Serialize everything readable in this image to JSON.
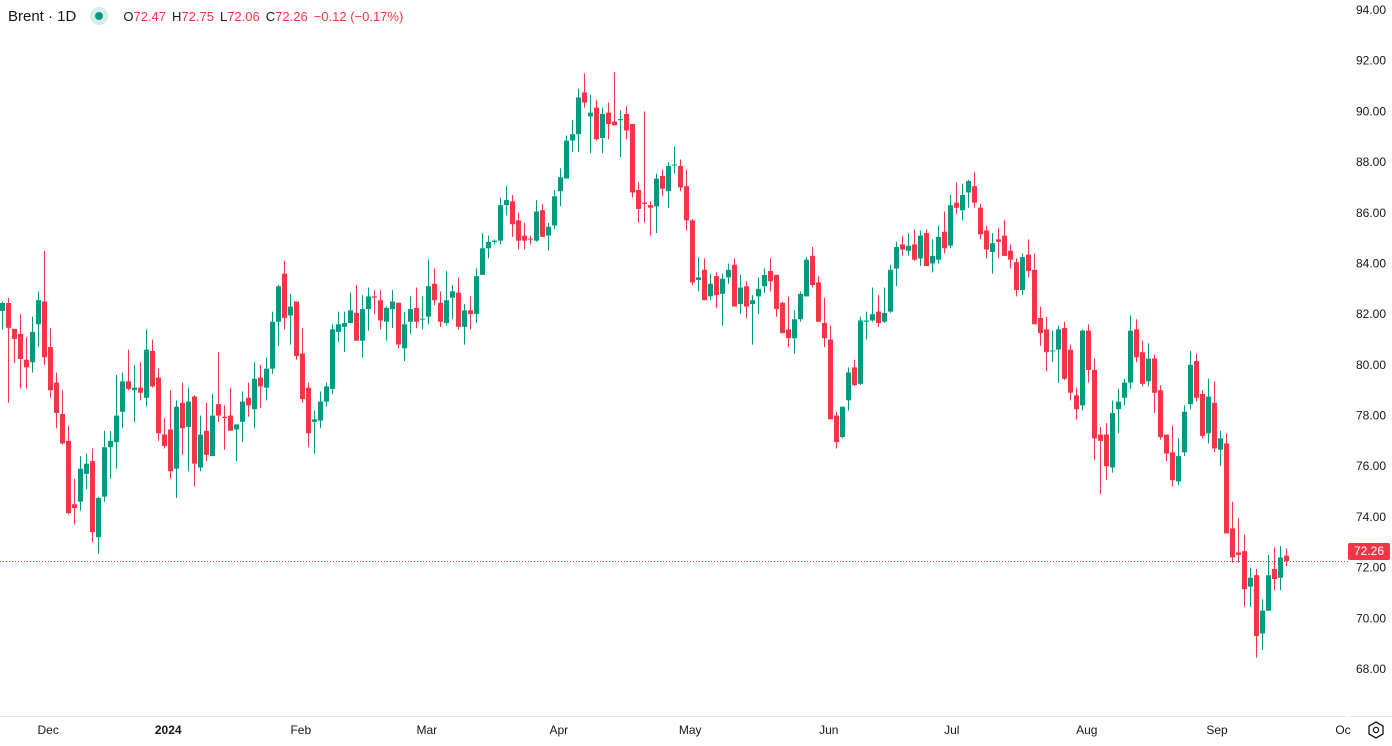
{
  "header": {
    "symbol": "Brent · 1D",
    "open_label": "O",
    "open": "72.47",
    "high_label": "H",
    "high": "72.75",
    "low_label": "L",
    "low": "72.06",
    "close_label": "C",
    "close": "72.26",
    "change": "−0.12 (−0.17%)",
    "status_color": "#089981"
  },
  "last_price_label": "72.26",
  "colors": {
    "up": "#089981",
    "down": "#f23645",
    "axis_text": "#131722",
    "last_price": "#f23645"
  },
  "settings_icon": "gear-icon",
  "chart_data": {
    "type": "candlestick",
    "title": "",
    "ylim": [
      68,
      94
    ],
    "y_ticks": [
      "68.00",
      "70.00",
      "72.00",
      "74.00",
      "76.00",
      "78.00",
      "80.00",
      "82.00",
      "84.00",
      "86.00",
      "88.00",
      "90.00",
      "92.00",
      "94.00"
    ],
    "x_ticks": [
      {
        "label": "Dec",
        "index": 7.7
      },
      {
        "label": "2024",
        "index": 27.7
      },
      {
        "label": "Feb",
        "index": 49.8
      },
      {
        "label": "Mar",
        "index": 70.8
      },
      {
        "label": "Apr",
        "index": 92.8
      },
      {
        "label": "May",
        "index": 114.7
      },
      {
        "label": "Jun",
        "index": 137.8
      },
      {
        "label": "Jul",
        "index": 158.3
      },
      {
        "label": "Aug",
        "index": 180.8
      },
      {
        "label": "Sep",
        "index": 202.5
      },
      {
        "label": "Oc",
        "index": 223.5
      }
    ],
    "last_price": 72.26,
    "grid": false,
    "ohlc_fields": [
      "open",
      "high",
      "low",
      "close"
    ],
    "candles": [
      [
        82.13,
        82.5,
        81.4,
        82.44
      ],
      [
        82.44,
        82.64,
        78.5,
        81.46
      ],
      [
        81.42,
        81.42,
        80.07,
        81.02
      ],
      [
        81.22,
        82.0,
        79.06,
        80.23
      ],
      [
        80.2,
        81.1,
        79.06,
        79.9
      ],
      [
        80.1,
        81.9,
        79.7,
        81.3
      ],
      [
        81.6,
        82.9,
        80.7,
        82.55
      ],
      [
        82.5,
        84.5,
        80.0,
        80.3
      ],
      [
        80.7,
        81.45,
        78.7,
        79.0
      ],
      [
        79.3,
        79.7,
        77.5,
        78.1
      ],
      [
        78.06,
        79.0,
        76.85,
        76.9
      ],
      [
        77.0,
        77.6,
        74.1,
        74.15
      ],
      [
        74.5,
        75.5,
        73.7,
        74.35
      ],
      [
        74.6,
        76.4,
        74.25,
        75.9
      ],
      [
        75.7,
        76.5,
        75.1,
        76.1
      ],
      [
        76.2,
        76.7,
        73.0,
        73.4
      ],
      [
        73.2,
        74.8,
        72.55,
        74.75
      ],
      [
        74.8,
        77.4,
        74.6,
        76.75
      ],
      [
        76.75,
        77.4,
        75.5,
        77.0
      ],
      [
        76.95,
        79.6,
        75.9,
        78.0
      ],
      [
        78.15,
        79.7,
        77.5,
        79.35
      ],
      [
        79.35,
        80.6,
        79.0,
        79.05
      ],
      [
        79.0,
        80.0,
        77.75,
        79.1
      ],
      [
        79.1,
        80.1,
        78.6,
        78.9
      ],
      [
        78.7,
        81.4,
        78.35,
        80.6
      ],
      [
        80.55,
        81.0,
        79.1,
        79.15
      ],
      [
        79.5,
        79.85,
        77.0,
        77.3
      ],
      [
        77.25,
        77.9,
        76.7,
        76.8
      ],
      [
        77.45,
        79.0,
        75.5,
        75.8
      ],
      [
        75.9,
        78.6,
        74.75,
        78.35
      ],
      [
        78.5,
        79.3,
        76.45,
        77.5
      ],
      [
        77.55,
        79.1,
        75.8,
        78.55
      ],
      [
        78.75,
        78.8,
        75.2,
        76.1
      ],
      [
        75.95,
        78.0,
        75.8,
        77.25
      ],
      [
        77.4,
        78.5,
        76.2,
        76.45
      ],
      [
        76.4,
        78.85,
        76.4,
        78.0
      ],
      [
        78.45,
        80.5,
        77.75,
        78.0
      ],
      [
        77.95,
        78.4,
        76.65,
        77.9
      ],
      [
        78.0,
        79.1,
        77.4,
        77.4
      ],
      [
        77.45,
        77.65,
        76.2,
        77.65
      ],
      [
        77.75,
        78.95,
        76.95,
        78.55
      ],
      [
        78.7,
        79.3,
        77.95,
        78.4
      ],
      [
        78.25,
        80.1,
        77.5,
        79.45
      ],
      [
        79.5,
        80.0,
        78.3,
        79.15
      ],
      [
        79.1,
        80.3,
        78.6,
        79.85
      ],
      [
        79.85,
        82.1,
        79.65,
        81.7
      ],
      [
        81.7,
        83.15,
        80.75,
        83.1
      ],
      [
        83.6,
        84.1,
        81.4,
        81.85
      ],
      [
        81.95,
        82.8,
        80.8,
        82.3
      ],
      [
        82.5,
        82.5,
        80.2,
        80.35
      ],
      [
        80.45,
        81.45,
        78.5,
        78.65
      ],
      [
        79.1,
        79.3,
        76.75,
        77.3
      ],
      [
        77.75,
        78.2,
        76.5,
        77.85
      ],
      [
        77.8,
        78.95,
        77.5,
        78.55
      ],
      [
        78.55,
        79.3,
        78.35,
        79.15
      ],
      [
        79.05,
        81.6,
        78.85,
        81.4
      ],
      [
        81.3,
        82.1,
        80.9,
        81.6
      ],
      [
        81.5,
        82.1,
        80.5,
        81.65
      ],
      [
        81.65,
        82.85,
        81.65,
        82.15
      ],
      [
        82.05,
        83.15,
        80.95,
        80.95
      ],
      [
        80.95,
        82.75,
        80.3,
        82.2
      ],
      [
        82.2,
        83.05,
        81.35,
        82.7
      ],
      [
        82.7,
        82.95,
        82.0,
        82.65
      ],
      [
        82.55,
        82.95,
        81.4,
        81.75
      ],
      [
        81.7,
        82.3,
        80.95,
        82.25
      ],
      [
        82.2,
        82.95,
        81.45,
        82.5
      ],
      [
        82.45,
        82.45,
        80.65,
        80.8
      ],
      [
        80.65,
        82.1,
        80.15,
        81.6
      ],
      [
        81.7,
        82.7,
        81.2,
        82.2
      ],
      [
        82.25,
        83.05,
        81.45,
        81.7
      ],
      [
        81.8,
        82.7,
        81.4,
        81.82
      ],
      [
        81.9,
        84.15,
        81.6,
        83.1
      ],
      [
        83.2,
        83.8,
        82.35,
        82.55
      ],
      [
        82.45,
        82.9,
        81.5,
        81.7
      ],
      [
        81.65,
        83.7,
        81.55,
        82.55
      ],
      [
        82.65,
        83.15,
        81.8,
        82.9
      ],
      [
        82.85,
        83.45,
        81.4,
        81.5
      ],
      [
        81.5,
        82.4,
        80.8,
        82.15
      ],
      [
        82.15,
        82.7,
        81.4,
        82.0
      ],
      [
        82.0,
        83.8,
        81.65,
        83.5
      ],
      [
        83.55,
        85.2,
        83.55,
        84.6
      ],
      [
        84.6,
        85.1,
        84.2,
        84.85
      ],
      [
        84.85,
        84.95,
        84.75,
        84.9
      ],
      [
        84.9,
        86.6,
        84.75,
        86.3
      ],
      [
        86.3,
        87.05,
        85.9,
        86.5
      ],
      [
        86.45,
        86.7,
        85.05,
        85.55
      ],
      [
        85.7,
        86.0,
        84.55,
        84.9
      ],
      [
        85.1,
        85.6,
        84.55,
        84.9
      ],
      [
        84.98,
        85.1,
        84.75,
        84.95
      ],
      [
        84.9,
        86.5,
        84.85,
        86.05
      ],
      [
        86.1,
        86.35,
        85.05,
        85.05
      ],
      [
        85.1,
        85.6,
        84.5,
        85.45
      ],
      [
        85.5,
        86.9,
        85.35,
        86.65
      ],
      [
        86.85,
        87.75,
        86.25,
        87.4
      ],
      [
        87.35,
        89.05,
        87.35,
        88.85
      ],
      [
        88.85,
        89.65,
        88.4,
        89.1
      ],
      [
        89.1,
        90.9,
        88.4,
        90.55
      ],
      [
        90.75,
        91.5,
        90.15,
        90.35
      ],
      [
        89.8,
        90.65,
        88.35,
        89.95
      ],
      [
        90.15,
        90.45,
        88.85,
        88.9
      ],
      [
        88.95,
        90.15,
        88.35,
        89.9
      ],
      [
        89.95,
        90.35,
        88.9,
        89.5
      ],
      [
        89.6,
        91.55,
        89.45,
        89.45
      ],
      [
        89.65,
        90.05,
        88.2,
        89.7
      ],
      [
        89.9,
        90.2,
        88.9,
        89.25
      ],
      [
        89.5,
        89.5,
        86.6,
        86.8
      ],
      [
        86.9,
        87.2,
        85.6,
        86.15
      ],
      [
        86.4,
        90.0,
        85.6,
        86.35
      ],
      [
        86.3,
        86.45,
        85.1,
        86.2
      ],
      [
        86.25,
        87.55,
        85.2,
        87.35
      ],
      [
        87.45,
        87.7,
        86.65,
        86.95
      ],
      [
        86.85,
        88.0,
        86.2,
        87.85
      ],
      [
        87.88,
        88.6,
        87.55,
        87.9
      ],
      [
        87.85,
        88.1,
        86.85,
        87.0
      ],
      [
        87.05,
        87.7,
        85.3,
        85.7
      ],
      [
        85.7,
        85.75,
        83.15,
        83.25
      ],
      [
        83.35,
        84.25,
        82.9,
        83.45
      ],
      [
        83.75,
        84.2,
        82.55,
        82.55
      ],
      [
        82.7,
        83.6,
        82.55,
        83.2
      ],
      [
        83.5,
        83.65,
        82.25,
        82.75
      ],
      [
        82.8,
        83.6,
        81.55,
        83.4
      ],
      [
        83.45,
        84.0,
        83.2,
        83.75
      ],
      [
        83.95,
        84.2,
        82.3,
        82.3
      ],
      [
        82.4,
        83.55,
        82.0,
        83.05
      ],
      [
        83.1,
        83.3,
        81.85,
        82.3
      ],
      [
        82.4,
        82.75,
        80.8,
        82.55
      ],
      [
        82.7,
        83.45,
        82.0,
        83.0
      ],
      [
        83.1,
        83.8,
        82.85,
        83.55
      ],
      [
        83.7,
        84.2,
        82.9,
        83.3
      ],
      [
        83.55,
        83.55,
        81.9,
        82.2
      ],
      [
        82.45,
        82.5,
        81.25,
        81.25
      ],
      [
        81.4,
        82.7,
        80.7,
        81.05
      ],
      [
        81.05,
        82.15,
        80.45,
        81.8
      ],
      [
        81.8,
        82.9,
        81.7,
        82.8
      ],
      [
        82.7,
        84.25,
        82.7,
        84.15
      ],
      [
        84.3,
        84.65,
        83.05,
        83.15
      ],
      [
        83.25,
        83.5,
        81.7,
        81.7
      ],
      [
        81.65,
        82.65,
        80.7,
        81.05
      ],
      [
        81.0,
        81.55,
        77.85,
        77.85
      ],
      [
        78.0,
        78.15,
        76.7,
        76.95
      ],
      [
        77.15,
        78.35,
        77.1,
        78.35
      ],
      [
        78.6,
        79.9,
        78.2,
        79.7
      ],
      [
        79.9,
        80.2,
        79.15,
        79.2
      ],
      [
        79.25,
        81.9,
        79.2,
        81.75
      ],
      [
        81.7,
        82.1,
        81.0,
        81.75
      ],
      [
        81.75,
        83.05,
        81.7,
        82.0
      ],
      [
        82.1,
        82.75,
        81.5,
        81.65
      ],
      [
        81.7,
        83.05,
        81.65,
        82.05
      ],
      [
        82.1,
        83.95,
        82.05,
        83.75
      ],
      [
        83.8,
        84.85,
        83.1,
        84.65
      ],
      [
        84.75,
        85.1,
        84.3,
        84.55
      ],
      [
        84.5,
        85.2,
        84.3,
        84.7
      ],
      [
        84.75,
        85.35,
        84.1,
        84.15
      ],
      [
        84.2,
        85.3,
        83.9,
        85.1
      ],
      [
        85.2,
        85.35,
        83.9,
        83.9
      ],
      [
        84.0,
        84.95,
        83.65,
        84.3
      ],
      [
        84.15,
        85.5,
        84.0,
        85.05
      ],
      [
        85.25,
        86.05,
        84.4,
        84.6
      ],
      [
        84.7,
        86.7,
        84.6,
        86.3
      ],
      [
        86.4,
        87.2,
        85.95,
        86.2
      ],
      [
        86.1,
        87.15,
        85.7,
        86.7
      ],
      [
        86.8,
        87.3,
        86.2,
        87.25
      ],
      [
        87.05,
        87.6,
        86.2,
        86.4
      ],
      [
        86.2,
        86.35,
        84.95,
        85.15
      ],
      [
        85.3,
        85.5,
        84.2,
        84.55
      ],
      [
        84.45,
        85.2,
        83.6,
        84.8
      ],
      [
        84.95,
        85.4,
        84.2,
        84.85
      ],
      [
        85.1,
        85.7,
        84.3,
        84.3
      ],
      [
        84.5,
        84.75,
        83.8,
        84.15
      ],
      [
        84.05,
        84.2,
        82.7,
        82.95
      ],
      [
        82.95,
        84.4,
        82.75,
        84.25
      ],
      [
        84.35,
        84.95,
        83.45,
        83.7
      ],
      [
        83.75,
        84.4,
        81.6,
        81.6
      ],
      [
        81.85,
        82.3,
        80.75,
        81.25
      ],
      [
        81.4,
        81.9,
        79.75,
        80.5
      ],
      [
        80.55,
        81.35,
        80.1,
        80.57
      ],
      [
        80.6,
        81.55,
        79.3,
        81.4
      ],
      [
        81.45,
        81.7,
        79.4,
        79.45
      ],
      [
        80.6,
        80.8,
        78.6,
        78.9
      ],
      [
        78.8,
        79.1,
        77.85,
        78.25
      ],
      [
        78.4,
        81.4,
        78.2,
        81.35
      ],
      [
        81.35,
        81.6,
        79.3,
        79.8
      ],
      [
        79.8,
        80.25,
        76.25,
        77.1
      ],
      [
        77.25,
        77.55,
        74.9,
        77.0
      ],
      [
        77.25,
        77.7,
        75.45,
        76.0
      ],
      [
        75.95,
        78.6,
        75.75,
        78.1
      ],
      [
        78.25,
        79.05,
        77.3,
        78.55
      ],
      [
        78.7,
        79.45,
        78.4,
        79.3
      ],
      [
        79.3,
        81.95,
        79.05,
        81.35
      ],
      [
        81.4,
        81.8,
        80.1,
        80.3
      ],
      [
        80.5,
        80.95,
        79.15,
        79.25
      ],
      [
        79.35,
        80.85,
        79.15,
        80.25
      ],
      [
        80.25,
        80.4,
        78.1,
        78.9
      ],
      [
        79.0,
        79.2,
        77.05,
        77.15
      ],
      [
        77.25,
        77.25,
        76.2,
        76.5
      ],
      [
        76.55,
        77.6,
        75.2,
        75.45
      ],
      [
        75.4,
        77.1,
        75.25,
        76.4
      ],
      [
        76.55,
        78.4,
        76.4,
        78.15
      ],
      [
        78.45,
        80.55,
        78.25,
        80.0
      ],
      [
        80.15,
        80.45,
        78.55,
        78.7
      ],
      [
        78.85,
        79.0,
        77.1,
        77.2
      ],
      [
        77.3,
        79.45,
        76.9,
        78.75
      ],
      [
        78.5,
        79.35,
        76.55,
        76.7
      ],
      [
        76.65,
        77.4,
        76.0,
        77.1
      ],
      [
        76.9,
        77.3,
        73.35,
        73.35
      ],
      [
        73.55,
        74.6,
        72.2,
        72.4
      ],
      [
        72.6,
        73.95,
        72.2,
        72.5
      ],
      [
        72.65,
        73.3,
        70.45,
        71.15
      ],
      [
        71.25,
        72.0,
        70.45,
        71.6
      ],
      [
        71.7,
        71.95,
        68.45,
        69.3
      ],
      [
        69.4,
        70.75,
        68.75,
        70.3
      ],
      [
        70.3,
        72.5,
        70.3,
        71.7
      ],
      [
        71.95,
        72.8,
        71.1,
        71.55
      ],
      [
        71.6,
        72.85,
        71.1,
        72.4
      ],
      [
        72.47,
        72.75,
        72.06,
        72.26
      ]
    ]
  }
}
